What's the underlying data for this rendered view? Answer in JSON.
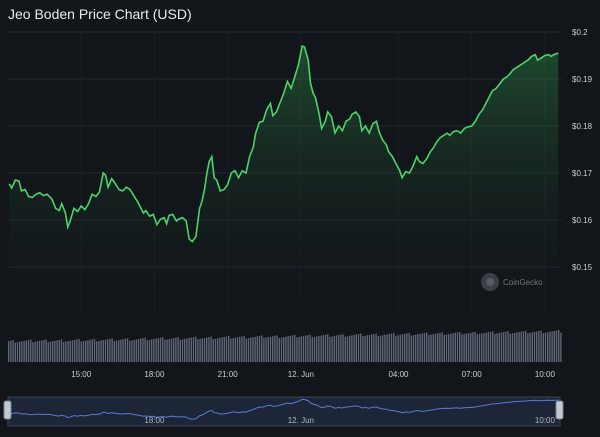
{
  "title": "Jeo Boden Price Chart (USD)",
  "watermark": "CoinGecko",
  "colors": {
    "line": "#4cd36a",
    "volume": "#6d7687",
    "grid": "#232830",
    "navigator_line": "#5b7bd5",
    "navigator_bg": "#1d2637"
  },
  "chart_data": {
    "type": "line",
    "title": "Jeo Boden Price Chart (USD)",
    "ylim": [
      0.14,
      0.2
    ],
    "yticks": [
      "$0.15",
      "$0.16",
      "$0.17",
      "$0.18",
      "$0.19",
      "$0.2"
    ],
    "ytick_values": [
      0.15,
      0.16,
      0.17,
      0.18,
      0.19,
      0.2
    ],
    "xlim": [
      12,
      34.7
    ],
    "xticks": [
      "15:00",
      "18:00",
      "21:00",
      "12. Jun",
      "04:00",
      "07:00",
      "10:00"
    ],
    "xtick_values": [
      15,
      18,
      21,
      24,
      28,
      31,
      34
    ],
    "grid": true,
    "series": [
      {
        "values": [
          [
            12.05,
            0.1677
          ],
          [
            12.15,
            0.1668
          ],
          [
            12.3,
            0.1685
          ],
          [
            12.45,
            0.1683
          ],
          [
            12.55,
            0.1662
          ],
          [
            12.7,
            0.1665
          ],
          [
            12.85,
            0.165
          ],
          [
            13.0,
            0.1648
          ],
          [
            13.15,
            0.1655
          ],
          [
            13.3,
            0.1658
          ],
          [
            13.45,
            0.1652
          ],
          [
            13.6,
            0.1655
          ],
          [
            13.8,
            0.1645
          ],
          [
            13.95,
            0.1625
          ],
          [
            14.1,
            0.162
          ],
          [
            14.2,
            0.1635
          ],
          [
            14.35,
            0.1615
          ],
          [
            14.45,
            0.1585
          ],
          [
            14.55,
            0.1598
          ],
          [
            14.7,
            0.1625
          ],
          [
            14.85,
            0.1618
          ],
          [
            15.0,
            0.163
          ],
          [
            15.15,
            0.1622
          ],
          [
            15.3,
            0.1635
          ],
          [
            15.45,
            0.1655
          ],
          [
            15.6,
            0.165
          ],
          [
            15.75,
            0.166
          ],
          [
            15.9,
            0.17
          ],
          [
            16.0,
            0.1695
          ],
          [
            16.1,
            0.167
          ],
          [
            16.25,
            0.1688
          ],
          [
            16.4,
            0.1677
          ],
          [
            16.55,
            0.1665
          ],
          [
            16.7,
            0.1662
          ],
          [
            16.85,
            0.167
          ],
          [
            17.0,
            0.1665
          ],
          [
            17.15,
            0.1652
          ],
          [
            17.3,
            0.164
          ],
          [
            17.45,
            0.1625
          ],
          [
            17.55,
            0.1615
          ],
          [
            17.65,
            0.162
          ],
          [
            17.8,
            0.1608
          ],
          [
            17.95,
            0.1612
          ],
          [
            18.1,
            0.159
          ],
          [
            18.25,
            0.1602
          ],
          [
            18.4,
            0.1605
          ],
          [
            18.5,
            0.1592
          ],
          [
            18.6,
            0.161
          ],
          [
            18.75,
            0.1612
          ],
          [
            18.9,
            0.1598
          ],
          [
            19.0,
            0.1602
          ],
          [
            19.15,
            0.1605
          ],
          [
            19.3,
            0.1598
          ],
          [
            19.42,
            0.156
          ],
          [
            19.55,
            0.1554
          ],
          [
            19.7,
            0.1565
          ],
          [
            19.85,
            0.1625
          ],
          [
            19.95,
            0.164
          ],
          [
            20.05,
            0.1665
          ],
          [
            20.15,
            0.17
          ],
          [
            20.25,
            0.1725
          ],
          [
            20.35,
            0.1735
          ],
          [
            20.45,
            0.169
          ],
          [
            20.55,
            0.1685
          ],
          [
            20.7,
            0.1662
          ],
          [
            20.85,
            0.1665
          ],
          [
            21.0,
            0.1675
          ],
          [
            21.15,
            0.17
          ],
          [
            21.3,
            0.1705
          ],
          [
            21.45,
            0.169
          ],
          [
            21.6,
            0.1705
          ],
          [
            21.75,
            0.17
          ],
          [
            21.9,
            0.1735
          ],
          [
            22.05,
            0.1755
          ],
          [
            22.15,
            0.1785
          ],
          [
            22.3,
            0.1808
          ],
          [
            22.45,
            0.181
          ],
          [
            22.6,
            0.1835
          ],
          [
            22.75,
            0.1848
          ],
          [
            22.85,
            0.1822
          ],
          [
            23.0,
            0.183
          ],
          [
            23.15,
            0.185
          ],
          [
            23.3,
            0.187
          ],
          [
            23.45,
            0.1895
          ],
          [
            23.6,
            0.188
          ],
          [
            23.75,
            0.1905
          ],
          [
            23.9,
            0.193
          ],
          [
            24.05,
            0.197
          ],
          [
            24.15,
            0.1968
          ],
          [
            24.3,
            0.194
          ],
          [
            24.4,
            0.189
          ],
          [
            24.5,
            0.187
          ],
          [
            24.6,
            0.186
          ],
          [
            24.75,
            0.1825
          ],
          [
            24.85,
            0.1795
          ],
          [
            25.0,
            0.181
          ],
          [
            25.1,
            0.183
          ],
          [
            25.25,
            0.182
          ],
          [
            25.4,
            0.1785
          ],
          [
            25.55,
            0.18
          ],
          [
            25.7,
            0.179
          ],
          [
            25.85,
            0.181
          ],
          [
            26.0,
            0.1815
          ],
          [
            26.1,
            0.1825
          ],
          [
            26.25,
            0.183
          ],
          [
            26.4,
            0.182
          ],
          [
            26.5,
            0.179
          ],
          [
            26.65,
            0.18
          ],
          [
            26.8,
            0.1785
          ],
          [
            26.95,
            0.1805
          ],
          [
            27.1,
            0.181
          ],
          [
            27.2,
            0.1788
          ],
          [
            27.35,
            0.177
          ],
          [
            27.5,
            0.176
          ],
          [
            27.6,
            0.1745
          ],
          [
            27.75,
            0.1735
          ],
          [
            27.9,
            0.172
          ],
          [
            28.05,
            0.1705
          ],
          [
            28.15,
            0.169
          ],
          [
            28.3,
            0.1703
          ],
          [
            28.45,
            0.17
          ],
          [
            28.6,
            0.1715
          ],
          [
            28.75,
            0.1735
          ],
          [
            28.85,
            0.1725
          ],
          [
            29.0,
            0.172
          ],
          [
            29.15,
            0.173
          ],
          [
            29.3,
            0.1745
          ],
          [
            29.45,
            0.1755
          ],
          [
            29.55,
            0.1765
          ],
          [
            29.7,
            0.1775
          ],
          [
            29.85,
            0.178
          ],
          [
            30.0,
            0.1785
          ],
          [
            30.1,
            0.178
          ],
          [
            30.25,
            0.1788
          ],
          [
            30.4,
            0.179
          ],
          [
            30.55,
            0.1785
          ],
          [
            30.7,
            0.1795
          ],
          [
            30.85,
            0.1798
          ],
          [
            31.0,
            0.18
          ],
          [
            31.15,
            0.181
          ],
          [
            31.3,
            0.1825
          ],
          [
            31.45,
            0.1835
          ],
          [
            31.6,
            0.185
          ],
          [
            31.75,
            0.1865
          ],
          [
            31.85,
            0.1875
          ],
          [
            32.0,
            0.188
          ],
          [
            32.15,
            0.189
          ],
          [
            32.3,
            0.19
          ],
          [
            32.45,
            0.1905
          ],
          [
            32.55,
            0.191
          ],
          [
            32.7,
            0.192
          ],
          [
            32.85,
            0.1925
          ],
          [
            33.0,
            0.193
          ],
          [
            33.15,
            0.1935
          ],
          [
            33.3,
            0.194
          ],
          [
            33.45,
            0.1948
          ],
          [
            33.6,
            0.1952
          ],
          [
            33.7,
            0.194
          ],
          [
            33.85,
            0.1945
          ],
          [
            34.0,
            0.195
          ],
          [
            34.15,
            0.1952
          ],
          [
            34.25,
            0.1948
          ],
          [
            34.4,
            0.1953
          ],
          [
            34.55,
            0.1955
          ]
        ]
      }
    ]
  },
  "navigator": {
    "labels": [
      "18:00",
      "12. Jun",
      "10:00"
    ],
    "label_values": [
      18,
      24,
      34
    ]
  }
}
